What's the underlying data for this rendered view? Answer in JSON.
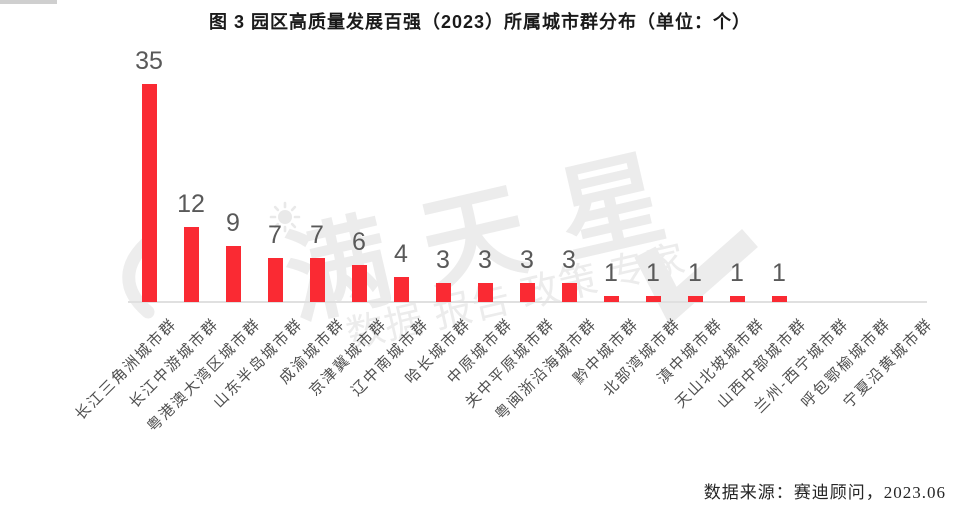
{
  "chart_data": {
    "type": "bar",
    "title": "图 3 园区高质量发展百强（2023）所属城市群分布（单位：个）",
    "unit": "个",
    "categories": [
      "长江三角洲城市群",
      "长江中游城市群",
      "粤港澳大湾区城市群",
      "山东半岛城市群",
      "成渝城市群",
      "京津冀城市群",
      "辽中南城市群",
      "哈长城市群",
      "中原城市群",
      "关中平原城市群",
      "粤闽浙沿海城市群",
      "黔中城市群",
      "北部湾城市群",
      "滇中城市群",
      "天山北坡城市群",
      "山西中部城市群",
      "兰州-西宁城市群",
      "呼包鄂榆城市群",
      "宁夏沿黄城市群"
    ],
    "values": [
      35,
      12,
      9,
      7,
      7,
      6,
      4,
      3,
      3,
      3,
      3,
      1,
      1,
      1,
      1,
      1,
      0,
      0,
      0
    ],
    "xlabel": "",
    "ylabel": "",
    "ylim": [
      0,
      35
    ],
    "grid": false,
    "legend": null,
    "data_labels_shown_for_nonzero_only": true
  },
  "watermark": {
    "brand": "满天星",
    "tagline": "数据 报告 政策 专家",
    "icon": "sun-icon"
  },
  "footer": {
    "source": "数据来源：赛迪顾问，2023.06"
  },
  "colors": {
    "bar": "#fa2a33",
    "value_label": "#595959",
    "category_label": "#4f4f4f",
    "axis_line": "#e0e0e0",
    "title": "#1a1a1a",
    "source": "#262626",
    "watermark": "#ececec"
  }
}
